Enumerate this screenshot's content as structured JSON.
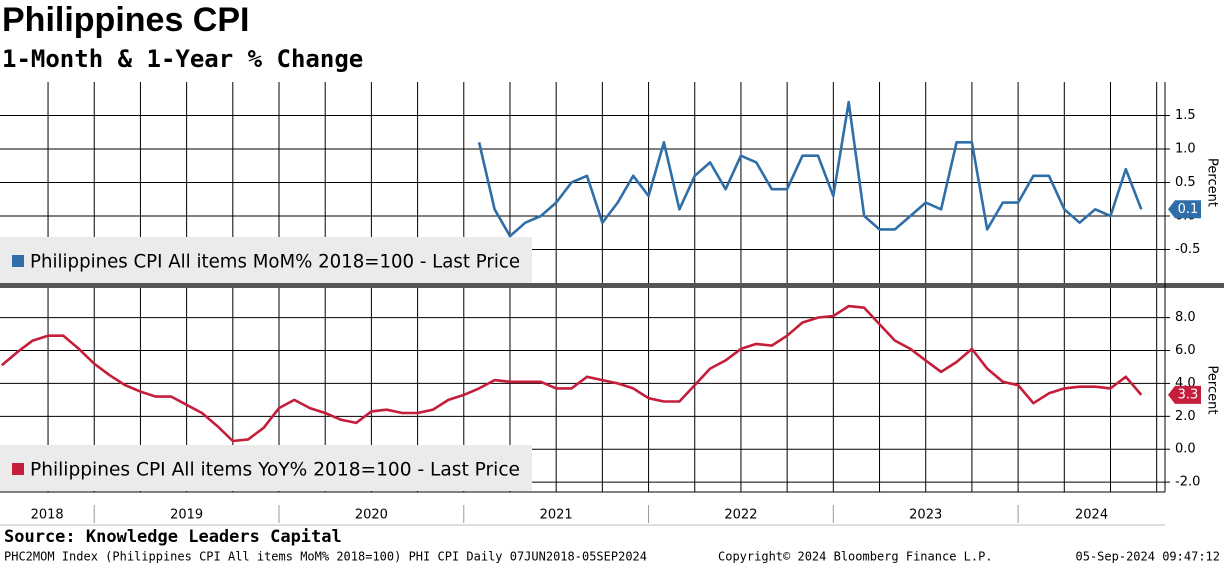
{
  "header": {
    "title": "Philippines CPI",
    "subtitle": "1-Month & 1-Year % Change"
  },
  "chart_data": [
    {
      "type": "line",
      "ylabel": "Percent",
      "x": [
        2021.083,
        2021.167,
        2021.25,
        2021.333,
        2021.417,
        2021.5,
        2021.583,
        2021.667,
        2021.75,
        2021.833,
        2021.917,
        2022,
        2022.083,
        2022.167,
        2022.25,
        2022.333,
        2022.417,
        2022.5,
        2022.583,
        2022.667,
        2022.75,
        2022.833,
        2022.917,
        2023,
        2023.083,
        2023.167,
        2023.25,
        2023.333,
        2023.417,
        2023.5,
        2023.583,
        2023.667,
        2023.75,
        2023.833,
        2023.917,
        2024,
        2024.083,
        2024.167,
        2024.25,
        2024.333,
        2024.417,
        2024.5,
        2024.583,
        2024.667
      ],
      "series": [
        {
          "name": "Philippines CPI All items MoM% 2018=100 - Last Price",
          "color": "#2f6ea8",
          "values": [
            1.1,
            0.1,
            -0.3,
            -0.1,
            0,
            0.2,
            0.5,
            0.6,
            -0.1,
            0.2,
            0.6,
            0.3,
            1.1,
            0.1,
            0.6,
            0.8,
            0.4,
            0.9,
            0.8,
            0.4,
            0.4,
            0.9,
            0.9,
            0.3,
            1.7,
            0,
            -0.2,
            -0.2,
            0,
            0.2,
            0.1,
            1.1,
            1.1,
            -0.2,
            0.2,
            0.2,
            0.6,
            0.6,
            0.1,
            -0.1,
            0.1,
            0,
            0.7,
            0.1
          ]
        }
      ],
      "xlim": [
        2018.49,
        2024.795
      ],
      "xgrid": [
        2018.75,
        2019,
        2019.25,
        2019.5,
        2019.75,
        2020,
        2020.25,
        2020.5,
        2020.75,
        2021,
        2021.25,
        2021.5,
        2021.75,
        2022,
        2022.25,
        2022.5,
        2022.75,
        2023,
        2023.25,
        2023.5,
        2023.75,
        2024,
        2024.25,
        2024.5,
        2024.75
      ],
      "ylim": [
        -1,
        2
      ],
      "yticks": [
        -0.5,
        {
          "value": 0,
          "label": "0.0"
        },
        0.5,
        {
          "value": 1,
          "label": "1.0"
        },
        1.5
      ],
      "grid": true
    },
    {
      "type": "line",
      "ylabel": "Percent",
      "x": [
        2018.5,
        2018.583,
        2018.667,
        2018.75,
        2018.833,
        2018.917,
        2019,
        2019.083,
        2019.167,
        2019.25,
        2019.333,
        2019.417,
        2019.5,
        2019.583,
        2019.667,
        2019.75,
        2019.833,
        2019.917,
        2020,
        2020.083,
        2020.167,
        2020.25,
        2020.333,
        2020.417,
        2020.5,
        2020.583,
        2020.667,
        2020.75,
        2020.833,
        2020.917,
        2021,
        2021.083,
        2021.167,
        2021.25,
        2021.333,
        2021.417,
        2021.5,
        2021.583,
        2021.667,
        2021.75,
        2021.833,
        2021.917,
        2022,
        2022.083,
        2022.167,
        2022.25,
        2022.333,
        2022.417,
        2022.5,
        2022.583,
        2022.667,
        2022.75,
        2022.833,
        2022.917,
        2023,
        2023.083,
        2023.167,
        2023.25,
        2023.333,
        2023.417,
        2023.5,
        2023.583,
        2023.667,
        2023.75,
        2023.833,
        2023.917,
        2024,
        2024.083,
        2024.167,
        2024.25,
        2024.333,
        2024.417,
        2024.5,
        2024.583,
        2024.667
      ],
      "series": [
        {
          "name": "Philippines CPI All items YoY% 2018=100 - Last Price",
          "color": "#c41e3a",
          "values": [
            5.1,
            5.9,
            6.6,
            6.9,
            6.9,
            6.1,
            5.2,
            4.5,
            3.9,
            3.5,
            3.2,
            3.2,
            2.7,
            2.2,
            1.4,
            0.5,
            0.6,
            1.3,
            2.5,
            3.0,
            2.5,
            2.2,
            1.8,
            1.6,
            2.3,
            2.4,
            2.2,
            2.2,
            2.4,
            3.0,
            3.3,
            3.7,
            4.2,
            4.1,
            4.1,
            4.1,
            3.7,
            3.7,
            4.4,
            4.2,
            4.0,
            3.7,
            3.1,
            2.9,
            2.9,
            3.9,
            4.9,
            5.4,
            6.1,
            6.4,
            6.3,
            6.9,
            7.7,
            8.0,
            8.1,
            8.7,
            8.6,
            7.6,
            6.6,
            6.1,
            5.4,
            4.7,
            5.3,
            6.1,
            4.9,
            4.1,
            3.9,
            2.8,
            3.4,
            3.7,
            3.8,
            3.8,
            3.7,
            4.4,
            3.3
          ]
        }
      ],
      "xlim": [
        2018.49,
        2024.795
      ],
      "xgrid": [
        2018.75,
        2019,
        2019.25,
        2019.5,
        2019.75,
        2020,
        2020.25,
        2020.5,
        2020.75,
        2021,
        2021.25,
        2021.5,
        2021.75,
        2022,
        2022.25,
        2022.5,
        2022.75,
        2023,
        2023.25,
        2023.5,
        2023.75,
        2024,
        2024.25,
        2024.5,
        2024.75
      ],
      "xticks": [
        {
          "value": 2018,
          "label": "2018"
        },
        {
          "value": 2019,
          "label": "2019"
        },
        {
          "value": 2020,
          "label": "2020"
        },
        {
          "value": 2021,
          "label": "2021"
        },
        {
          "value": 2022,
          "label": "2022"
        },
        {
          "value": 2023,
          "label": "2023"
        },
        {
          "value": 2024,
          "label": "2024"
        }
      ],
      "ylim": [
        -2.6,
        9.8
      ],
      "yticks": [
        {
          "value": -2,
          "label": "-2.0"
        },
        {
          "value": 0,
          "label": "0.0"
        },
        {
          "value": 2,
          "label": "2.0"
        },
        {
          "value": 4,
          "label": "4.0"
        },
        {
          "value": 6,
          "label": "6.0"
        },
        {
          "value": 8,
          "label": "8.0"
        }
      ],
      "grid": true
    }
  ],
  "footer": {
    "source": "Source: Knowledge Leaders Capital",
    "ticker": "PHC2MOM Index (Philippines CPI All items MoM% 2018=100) PHI CPI  Daily 07JUN2018-05SEP2024",
    "copyright": "Copyright© 2024 Bloomberg Finance L.P.",
    "timestamp": "05-Sep-2024 09:47:12"
  }
}
